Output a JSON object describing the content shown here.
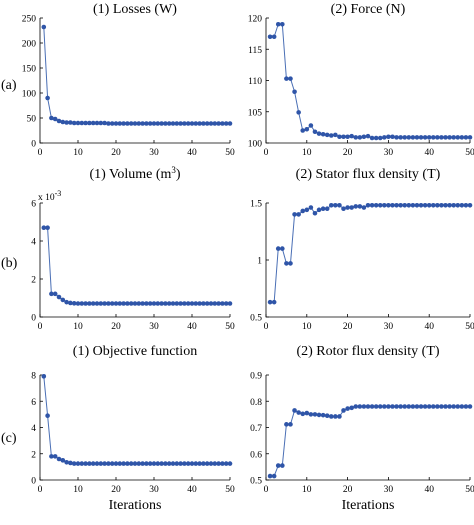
{
  "row_labels": [
    "(a)",
    "(b)",
    "(c)"
  ],
  "chart_data": [
    {
      "type": "line",
      "title": "(1) Losses (W)",
      "xlabel": "",
      "ylabel": "",
      "xlim": [
        0,
        50
      ],
      "ylim": [
        0,
        250
      ],
      "xticks": [
        0,
        10,
        20,
        30,
        40,
        50
      ],
      "xtick_labels": [
        "0",
        "10",
        "20",
        "30",
        "40",
        "50"
      ],
      "yticks": [
        0,
        50,
        100,
        150,
        200,
        250
      ],
      "ytick_labels": [
        "0",
        "50",
        "100",
        "150",
        "200",
        "250"
      ],
      "color": "#2f55a8",
      "x": [
        1,
        2,
        3,
        4,
        5,
        6,
        7,
        8,
        9,
        10,
        11,
        12,
        13,
        14,
        15,
        16,
        17,
        18,
        19,
        20,
        21,
        22,
        23,
        24,
        25,
        26,
        27,
        28,
        29,
        30,
        31,
        32,
        33,
        34,
        35,
        36,
        37,
        38,
        39,
        40,
        41,
        42,
        43,
        44,
        45,
        46,
        47,
        48,
        49,
        50
      ],
      "y": [
        232,
        90,
        50,
        48,
        44,
        42,
        41,
        41,
        40,
        40,
        40,
        40,
        40,
        40,
        40,
        40,
        40,
        39,
        39,
        39,
        39,
        39,
        39,
        39,
        39,
        39,
        39,
        39,
        39,
        39,
        39,
        39,
        39,
        39,
        39,
        39,
        39,
        39,
        39,
        39,
        39,
        39,
        39,
        39,
        39,
        39,
        39,
        39,
        39,
        39
      ]
    },
    {
      "type": "line",
      "title": "(2) Force (N)",
      "xlabel": "",
      "ylabel": "",
      "xlim": [
        0,
        50
      ],
      "ylim": [
        100,
        120
      ],
      "xticks": [
        0,
        10,
        20,
        30,
        40,
        50
      ],
      "xtick_labels": [
        "0",
        "10",
        "20",
        "30",
        "40",
        "50"
      ],
      "yticks": [
        100,
        105,
        110,
        115,
        120
      ],
      "ytick_labels": [
        "100",
        "105",
        "110",
        "115",
        "120"
      ],
      "color": "#2f55a8",
      "x": [
        1,
        2,
        3,
        4,
        5,
        6,
        7,
        8,
        9,
        10,
        11,
        12,
        13,
        14,
        15,
        16,
        17,
        18,
        19,
        20,
        21,
        22,
        23,
        24,
        25,
        26,
        27,
        28,
        29,
        30,
        31,
        32,
        33,
        34,
        35,
        36,
        37,
        38,
        39,
        40,
        41,
        42,
        43,
        44,
        45,
        46,
        47,
        48,
        49,
        50
      ],
      "y": [
        117,
        117,
        119,
        119,
        110.3,
        110.3,
        108.2,
        104.9,
        102,
        102.2,
        102.8,
        101.8,
        101.5,
        101.4,
        101.3,
        101.2,
        101.3,
        101.0,
        101.0,
        101.0,
        101.1,
        100.9,
        100.9,
        101.0,
        101.1,
        100.8,
        100.8,
        100.8,
        100.9,
        101.0,
        101.0,
        100.9,
        100.9,
        100.9,
        100.9,
        100.9,
        100.9,
        100.9,
        100.9,
        100.9,
        100.9,
        100.9,
        100.9,
        100.9,
        100.9,
        100.9,
        100.9,
        100.9,
        100.9,
        100.9
      ]
    },
    {
      "type": "line",
      "title": "(1) Volume (m3)",
      "title_main": "(1) Volume (m",
      "title_sup": "3",
      "title_end": ")",
      "xlabel": "",
      "ylabel": "",
      "exponent_label": "x 10",
      "exponent_power": "-3",
      "xlim": [
        0,
        50
      ],
      "ylim": [
        0,
        0.006
      ],
      "xticks": [
        0,
        10,
        20,
        30,
        40,
        50
      ],
      "xtick_labels": [
        "0",
        "10",
        "20",
        "30",
        "40",
        "50"
      ],
      "yticks": [
        0,
        0.002,
        0.004,
        0.006
      ],
      "ytick_labels": [
        "0",
        "2",
        "4",
        "6"
      ],
      "color": "#2f55a8",
      "x": [
        1,
        2,
        3,
        4,
        5,
        6,
        7,
        8,
        9,
        10,
        11,
        12,
        13,
        14,
        15,
        16,
        17,
        18,
        19,
        20,
        21,
        22,
        23,
        24,
        25,
        26,
        27,
        28,
        29,
        30,
        31,
        32,
        33,
        34,
        35,
        36,
        37,
        38,
        39,
        40,
        41,
        42,
        43,
        44,
        45,
        46,
        47,
        48,
        49,
        50
      ],
      "y": [
        0.0047,
        0.0047,
        0.00122,
        0.00122,
        0.00105,
        0.0009,
        0.00078,
        0.00074,
        0.00072,
        0.00071,
        0.00071,
        0.00071,
        0.00071,
        0.00071,
        0.00071,
        0.00071,
        0.00071,
        0.00071,
        0.00071,
        0.00071,
        0.00071,
        0.00071,
        0.00071,
        0.00071,
        0.00071,
        0.00071,
        0.00071,
        0.00071,
        0.00071,
        0.00071,
        0.00071,
        0.00071,
        0.00071,
        0.00071,
        0.00071,
        0.00071,
        0.00071,
        0.00071,
        0.00071,
        0.00071,
        0.00071,
        0.00071,
        0.00071,
        0.00071,
        0.00071,
        0.00071,
        0.00071,
        0.00071,
        0.00071,
        0.00071
      ]
    },
    {
      "type": "line",
      "title": "(2) Stator flux density (T)",
      "xlabel": "",
      "ylabel": "",
      "xlim": [
        0,
        50
      ],
      "ylim": [
        0.5,
        1.5
      ],
      "xticks": [
        0,
        10,
        20,
        30,
        40,
        50
      ],
      "xtick_labels": [
        "0",
        "10",
        "20",
        "30",
        "40",
        "50"
      ],
      "yticks": [
        0.5,
        1.0,
        1.5
      ],
      "ytick_labels": [
        "0.5",
        "1",
        "1.5"
      ],
      "color": "#2f55a8",
      "x": [
        1,
        2,
        3,
        4,
        5,
        6,
        7,
        8,
        9,
        10,
        11,
        12,
        13,
        14,
        15,
        16,
        17,
        18,
        19,
        20,
        21,
        22,
        23,
        24,
        25,
        26,
        27,
        28,
        29,
        30,
        31,
        32,
        33,
        34,
        35,
        36,
        37,
        38,
        39,
        40,
        41,
        42,
        43,
        44,
        45,
        46,
        47,
        48,
        49,
        50
      ],
      "y": [
        0.63,
        0.63,
        1.1,
        1.1,
        0.97,
        0.97,
        1.4,
        1.4,
        1.43,
        1.44,
        1.46,
        1.41,
        1.44,
        1.45,
        1.45,
        1.48,
        1.48,
        1.48,
        1.45,
        1.46,
        1.46,
        1.47,
        1.47,
        1.46,
        1.48,
        1.48,
        1.48,
        1.48,
        1.48,
        1.48,
        1.48,
        1.48,
        1.48,
        1.48,
        1.48,
        1.48,
        1.48,
        1.48,
        1.48,
        1.48,
        1.48,
        1.48,
        1.48,
        1.48,
        1.48,
        1.48,
        1.48,
        1.48,
        1.48,
        1.48
      ]
    },
    {
      "type": "line",
      "title": "(1) Objective function",
      "xlabel": "Iterations",
      "ylabel": "",
      "xlim": [
        0,
        50
      ],
      "ylim": [
        0,
        8
      ],
      "xticks": [
        0,
        10,
        20,
        30,
        40,
        50
      ],
      "xtick_labels": [
        "0",
        "10",
        "20",
        "30",
        "40",
        "50"
      ],
      "yticks": [
        0,
        2,
        4,
        6,
        8
      ],
      "ytick_labels": [
        "0",
        "2",
        "4",
        "6",
        "8"
      ],
      "color": "#2f55a8",
      "x": [
        1,
        2,
        3,
        4,
        5,
        6,
        7,
        8,
        9,
        10,
        11,
        12,
        13,
        14,
        15,
        16,
        17,
        18,
        19,
        20,
        21,
        22,
        23,
        24,
        25,
        26,
        27,
        28,
        29,
        30,
        31,
        32,
        33,
        34,
        35,
        36,
        37,
        38,
        39,
        40,
        41,
        42,
        43,
        44,
        45,
        46,
        47,
        48,
        49,
        50
      ],
      "y": [
        7.9,
        4.9,
        1.8,
        1.8,
        1.6,
        1.5,
        1.35,
        1.3,
        1.25,
        1.25,
        1.25,
        1.25,
        1.25,
        1.25,
        1.25,
        1.25,
        1.25,
        1.25,
        1.25,
        1.25,
        1.25,
        1.25,
        1.25,
        1.25,
        1.25,
        1.25,
        1.25,
        1.25,
        1.25,
        1.25,
        1.25,
        1.25,
        1.25,
        1.25,
        1.25,
        1.25,
        1.25,
        1.25,
        1.25,
        1.25,
        1.25,
        1.25,
        1.25,
        1.25,
        1.25,
        1.25,
        1.25,
        1.25,
        1.25,
        1.25
      ]
    },
    {
      "type": "line",
      "title": "(2) Rotor flux density (T)",
      "xlabel": "Iterations",
      "ylabel": "",
      "xlim": [
        0,
        50
      ],
      "ylim": [
        0.5,
        0.9
      ],
      "xticks": [
        0,
        10,
        20,
        30,
        40,
        50
      ],
      "xtick_labels": [
        "0",
        "10",
        "20",
        "30",
        "40",
        "50"
      ],
      "yticks": [
        0.5,
        0.6,
        0.7,
        0.8,
        0.9
      ],
      "ytick_labels": [
        "0.5",
        "0.6",
        "0.7",
        "0.8",
        "0.9"
      ],
      "color": "#2f55a8",
      "x": [
        1,
        2,
        3,
        4,
        5,
        6,
        7,
        8,
        9,
        10,
        11,
        12,
        13,
        14,
        15,
        16,
        17,
        18,
        19,
        20,
        21,
        22,
        23,
        24,
        25,
        26,
        27,
        28,
        29,
        30,
        31,
        32,
        33,
        34,
        35,
        36,
        37,
        38,
        39,
        40,
        41,
        42,
        43,
        44,
        45,
        46,
        47,
        48,
        49,
        50
      ],
      "y": [
        0.515,
        0.515,
        0.555,
        0.555,
        0.712,
        0.712,
        0.765,
        0.757,
        0.752,
        0.755,
        0.75,
        0.75,
        0.748,
        0.747,
        0.745,
        0.742,
        0.742,
        0.742,
        0.765,
        0.772,
        0.775,
        0.78,
        0.78,
        0.78,
        0.78,
        0.78,
        0.78,
        0.78,
        0.78,
        0.78,
        0.78,
        0.78,
        0.78,
        0.78,
        0.78,
        0.78,
        0.78,
        0.78,
        0.78,
        0.78,
        0.78,
        0.78,
        0.78,
        0.78,
        0.78,
        0.78,
        0.78,
        0.78,
        0.78,
        0.78
      ]
    }
  ]
}
